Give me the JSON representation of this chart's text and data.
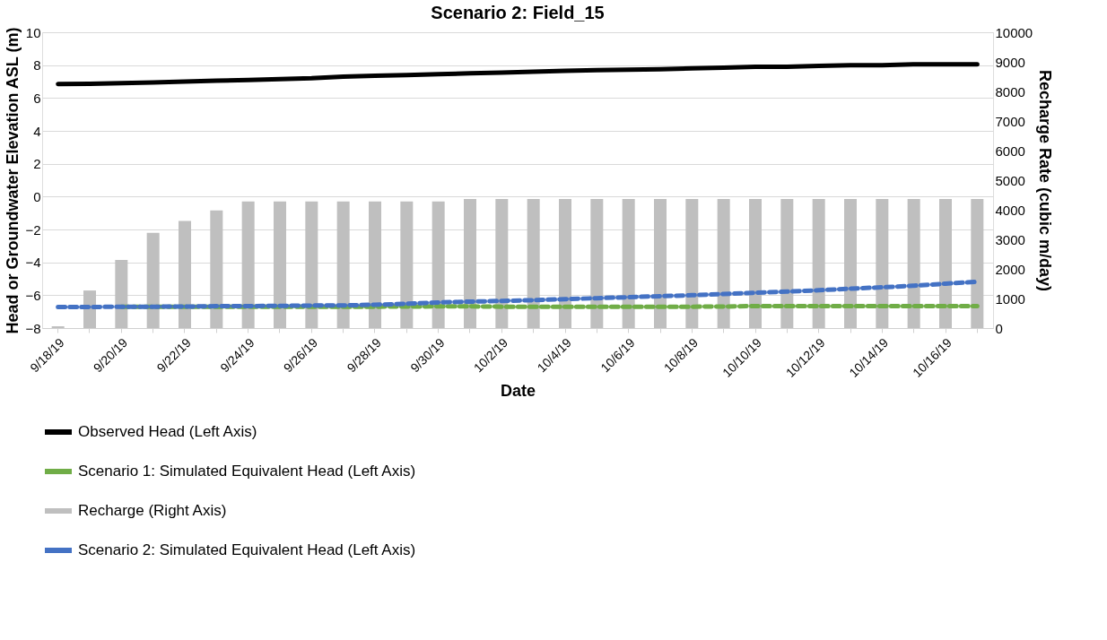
{
  "chart_data": {
    "type": "bar",
    "title": "Scenario 2: Field_15",
    "xlabel": "Date",
    "ylabel": "Head or Groundwater Elevation ASL (m)",
    "y2label": "Recharge Rate (cubic m/day)",
    "categories": [
      "9/18/19",
      null,
      "9/20/19",
      null,
      "9/22/19",
      null,
      "9/24/19",
      null,
      "9/26/19",
      null,
      "9/28/19",
      null,
      "9/30/19",
      null,
      "10/2/19",
      null,
      "10/4/19",
      null,
      "10/6/19",
      null,
      "10/8/19",
      null,
      "10/10/19",
      null,
      "10/12/19",
      null,
      "10/14/19",
      null,
      "10/16/19",
      null
    ],
    "series": [
      {
        "name": "Observed Head (Left Axis)",
        "type": "line",
        "color": "#000000",
        "line_style": "solid",
        "values": [
          6.85,
          6.87,
          6.9,
          6.95,
          7.0,
          7.05,
          7.1,
          7.15,
          7.2,
          7.3,
          7.35,
          7.4,
          7.45,
          7.5,
          7.55,
          7.6,
          7.65,
          7.7,
          7.72,
          7.75,
          7.8,
          7.85,
          7.9,
          7.9,
          7.95,
          8.0,
          8.0,
          8.05,
          8.05,
          8.05
        ]
      },
      {
        "name": "Scenario 1: Simulated Equivalent Head (Left Axis)",
        "type": "line",
        "color": "#70ad47",
        "line_style": "dashed",
        "values": [
          null,
          null,
          -6.71,
          -6.71,
          -6.71,
          -6.71,
          -6.71,
          -6.71,
          -6.7,
          -6.7,
          -6.7,
          -6.69,
          -6.68,
          -6.68,
          -6.7,
          -6.7,
          -6.7,
          -6.7,
          -6.7,
          -6.7,
          -6.7,
          -6.69,
          -6.66,
          -6.66,
          -6.66,
          -6.66,
          -6.66,
          -6.66,
          -6.66,
          -6.66
        ]
      },
      {
        "name": "Recharge (Right Axis)",
        "axis": "y2",
        "color": "#bfbfbf",
        "values": [
          60,
          1270,
          2300,
          3220,
          3620,
          3980,
          4280,
          4280,
          4280,
          4280,
          4280,
          4280,
          4280,
          4360,
          4360,
          4360,
          4360,
          4360,
          4360,
          4360,
          4360,
          4360,
          4360,
          4360,
          4360,
          4360,
          4360,
          4360,
          4360,
          4360
        ]
      },
      {
        "name": "Scenario 2: Simulated Equivalent Head (Left Axis)",
        "type": "line",
        "color": "#4472c4",
        "line_style": "dashed",
        "values": [
          -6.72,
          -6.72,
          -6.7,
          -6.7,
          -6.69,
          -6.67,
          -6.66,
          -6.65,
          -6.63,
          -6.62,
          -6.58,
          -6.52,
          -6.44,
          -6.39,
          -6.35,
          -6.3,
          -6.24,
          -6.18,
          -6.12,
          -6.06,
          -6.0,
          -5.93,
          -5.85,
          -5.78,
          -5.7,
          -5.6,
          -5.52,
          -5.42,
          -5.3,
          -5.18
        ]
      }
    ],
    "ylim": [
      -8,
      10
    ],
    "yticks": [
      -8,
      -6,
      -4,
      -2,
      0,
      2,
      4,
      6,
      8,
      10
    ],
    "y2lim": [
      0,
      10000
    ],
    "y2ticks": [
      0,
      1000,
      2000,
      3000,
      4000,
      5000,
      6000,
      7000,
      8000,
      9000,
      10000
    ],
    "grid": "y",
    "legend": "bottom"
  }
}
